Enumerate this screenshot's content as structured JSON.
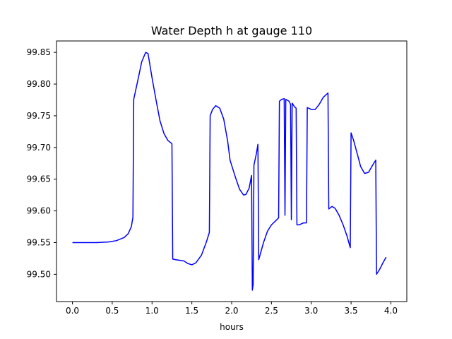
{
  "chart_data": {
    "type": "line",
    "title": "Water Depth h at gauge 110",
    "xlabel": "hours",
    "ylabel": "",
    "xlim": [
      -0.2,
      4.2
    ],
    "ylim": [
      99.457,
      99.868
    ],
    "xticks": [
      0.0,
      0.5,
      1.0,
      1.5,
      2.0,
      2.5,
      3.0,
      3.5,
      4.0
    ],
    "xtick_labels": [
      "0.0",
      "0.5",
      "1.0",
      "1.5",
      "2.0",
      "2.5",
      "3.0",
      "3.5",
      "4.0"
    ],
    "yticks": [
      99.5,
      99.55,
      99.6,
      99.65,
      99.7,
      99.75,
      99.8,
      99.85
    ],
    "ytick_labels": [
      "99.50",
      "99.55",
      "99.60",
      "99.65",
      "99.70",
      "99.75",
      "99.80",
      "99.85"
    ],
    "grid": false,
    "legend": "none",
    "series": [
      {
        "color": "#0000ff",
        "points": [
          [
            0.0,
            99.55
          ],
          [
            0.3,
            99.55
          ],
          [
            0.45,
            99.551
          ],
          [
            0.55,
            99.553
          ],
          [
            0.65,
            99.558
          ],
          [
            0.7,
            99.564
          ],
          [
            0.74,
            99.575
          ],
          [
            0.76,
            99.59
          ],
          [
            0.77,
            99.776
          ],
          [
            0.82,
            99.805
          ],
          [
            0.87,
            99.835
          ],
          [
            0.92,
            99.85
          ],
          [
            0.95,
            99.848
          ],
          [
            1.0,
            99.81
          ],
          [
            1.05,
            99.775
          ],
          [
            1.1,
            99.742
          ],
          [
            1.15,
            99.722
          ],
          [
            1.2,
            99.711
          ],
          [
            1.25,
            99.706
          ],
          [
            1.26,
            99.524
          ],
          [
            1.3,
            99.523
          ],
          [
            1.4,
            99.521
          ],
          [
            1.45,
            99.517
          ],
          [
            1.5,
            99.515
          ],
          [
            1.55,
            99.518
          ],
          [
            1.62,
            99.53
          ],
          [
            1.68,
            99.55
          ],
          [
            1.72,
            99.566
          ],
          [
            1.73,
            99.75
          ],
          [
            1.76,
            99.76
          ],
          [
            1.8,
            99.766
          ],
          [
            1.85,
            99.762
          ],
          [
            1.9,
            99.745
          ],
          [
            1.95,
            99.71
          ],
          [
            1.98,
            99.68
          ],
          [
            2.05,
            99.652
          ],
          [
            2.1,
            99.634
          ],
          [
            2.15,
            99.625
          ],
          [
            2.18,
            99.626
          ],
          [
            2.22,
            99.636
          ],
          [
            2.25,
            99.656
          ],
          [
            2.26,
            99.475
          ],
          [
            2.27,
            99.484
          ],
          [
            2.28,
            99.672
          ],
          [
            2.31,
            99.69
          ],
          [
            2.33,
            99.705
          ],
          [
            2.34,
            99.523
          ],
          [
            2.4,
            99.55
          ],
          [
            2.45,
            99.568
          ],
          [
            2.5,
            99.578
          ],
          [
            2.55,
            99.584
          ],
          [
            2.59,
            99.589
          ],
          [
            2.6,
            99.773
          ],
          [
            2.63,
            99.776
          ],
          [
            2.66,
            99.777
          ],
          [
            2.67,
            99.593
          ],
          [
            2.68,
            99.776
          ],
          [
            2.72,
            99.773
          ],
          [
            2.74,
            99.768
          ],
          [
            2.75,
            99.586
          ],
          [
            2.76,
            99.77
          ],
          [
            2.79,
            99.764
          ],
          [
            2.81,
            99.762
          ],
          [
            2.82,
            99.578
          ],
          [
            2.85,
            99.578
          ],
          [
            2.9,
            99.581
          ],
          [
            2.94,
            99.581
          ],
          [
            2.95,
            99.763
          ],
          [
            3.0,
            99.76
          ],
          [
            3.05,
            99.76
          ],
          [
            3.1,
            99.768
          ],
          [
            3.15,
            99.779
          ],
          [
            3.21,
            99.786
          ],
          [
            3.22,
            99.603
          ],
          [
            3.26,
            99.607
          ],
          [
            3.3,
            99.604
          ],
          [
            3.35,
            99.593
          ],
          [
            3.4,
            99.578
          ],
          [
            3.45,
            99.56
          ],
          [
            3.49,
            99.542
          ],
          [
            3.5,
            99.723
          ],
          [
            3.53,
            99.712
          ],
          [
            3.58,
            99.689
          ],
          [
            3.62,
            99.67
          ],
          [
            3.67,
            99.659
          ],
          [
            3.72,
            99.661
          ],
          [
            3.77,
            99.672
          ],
          [
            3.81,
            99.68
          ],
          [
            3.82,
            99.5
          ],
          [
            3.86,
            99.508
          ],
          [
            3.9,
            99.518
          ],
          [
            3.94,
            99.527
          ]
        ]
      }
    ]
  }
}
